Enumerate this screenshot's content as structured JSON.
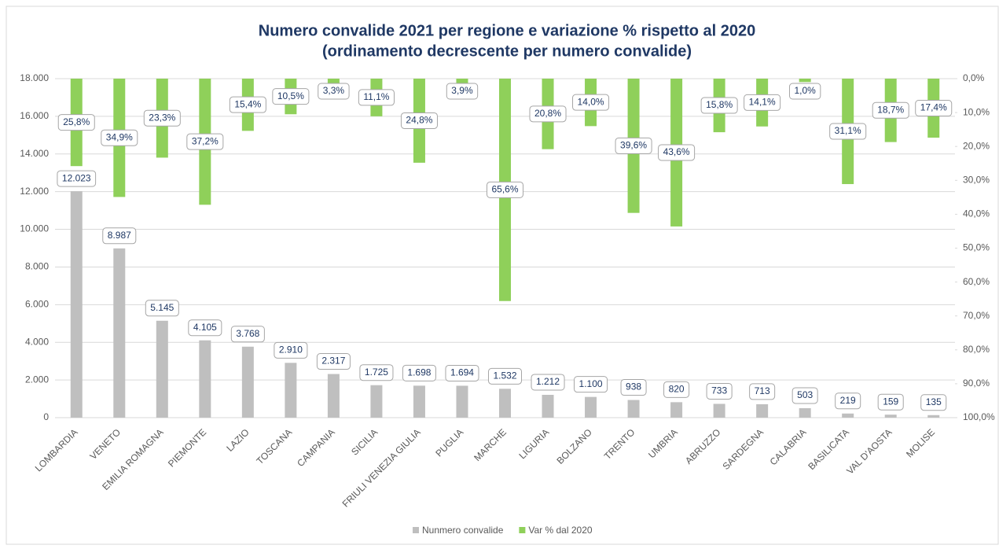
{
  "chart_data": {
    "type": "bar",
    "title": "Numero convalide 2021 per regione e variazione % rispetto al 2020",
    "subtitle": "(ordinamento decrescente per numero convalide)",
    "categories": [
      "LOMBARDIA",
      "VENETO",
      "EMILIA ROMAGNA",
      "PIEMONTE",
      "LAZIO",
      "TOSCANA",
      "CAMPANIA",
      "SICILIA",
      "FRIULI VENEZIA GIULIA",
      "PUGLIA",
      "MARCHE",
      "LIGURIA",
      "BOLZANO",
      "TRENTO",
      "UMBRIA",
      "ABRUZZO",
      "SARDEGNA",
      "CALABRIA",
      "BASILICATA",
      "VAL D'AOSTA",
      "MOLISE"
    ],
    "series": [
      {
        "name": "Nunmero convalide",
        "color": "#bfbfbf",
        "values": [
          12023,
          8987,
          5145,
          4105,
          3768,
          2910,
          2317,
          1725,
          1698,
          1694,
          1532,
          1212,
          1100,
          938,
          820,
          733,
          713,
          503,
          219,
          159,
          135
        ],
        "value_labels": [
          "12.023",
          "8.987",
          "5.145",
          "4.105",
          "3.768",
          "2.910",
          "2.317",
          "1.725",
          "1.698",
          "1.694",
          "1.532",
          "1.212",
          "1.100",
          "938",
          "820",
          "733",
          "713",
          "503",
          "219",
          "159",
          "135"
        ]
      },
      {
        "name": "Var % dal 2020",
        "color": "#8fd05a",
        "axis": "y2",
        "values": [
          25.8,
          34.9,
          23.3,
          37.2,
          15.4,
          10.5,
          3.3,
          11.1,
          24.8,
          3.9,
          65.6,
          20.8,
          14.0,
          39.6,
          43.6,
          15.8,
          14.1,
          1.0,
          31.1,
          18.7,
          17.4
        ],
        "value_labels": [
          "25,8%",
          "34,9%",
          "23,3%",
          "37,2%",
          "15,4%",
          "10,5%",
          "3,3%",
          "11,1%",
          "24,8%",
          "3,9%",
          "65,6%",
          "20,8%",
          "14,0%",
          "39,6%",
          "43,6%",
          "15,8%",
          "14,1%",
          "1,0%",
          "31,1%",
          "18,7%",
          "17,4%"
        ]
      }
    ],
    "ylim": [
      0,
      18000
    ],
    "yticks": [
      0,
      {
        "value": 2000,
        "label": "2.000"
      },
      {
        "value": 4000,
        "label": "4.000"
      },
      {
        "value": 6000,
        "label": "6.000"
      },
      {
        "value": 8000,
        "label": "8.000"
      },
      {
        "value": 10000,
        "label": "10.000"
      },
      {
        "value": 12000,
        "label": "12.000"
      },
      {
        "value": 14000,
        "label": "14.000"
      },
      {
        "value": 16000,
        "label": "16.000"
      },
      {
        "value": 18000,
        "label": "18.000"
      }
    ],
    "y2lim": [
      100,
      0
    ],
    "y2ticks": [
      {
        "value": 0,
        "label": "0,0%"
      },
      {
        "value": 10,
        "label": "10,0%"
      },
      {
        "value": 20,
        "label": "20,0%"
      },
      {
        "value": 30,
        "label": "30,0%"
      },
      {
        "value": 40,
        "label": "40,0%"
      },
      {
        "value": 50,
        "label": "50,0%"
      },
      {
        "value": 60,
        "label": "60,0%"
      },
      {
        "value": 70,
        "label": "70,0%"
      },
      {
        "value": 80,
        "label": "80,0%"
      },
      {
        "value": 90,
        "label": "90,0%"
      },
      {
        "value": 100,
        "label": "100,0%"
      }
    ],
    "grid": true,
    "legend": "bottom"
  }
}
